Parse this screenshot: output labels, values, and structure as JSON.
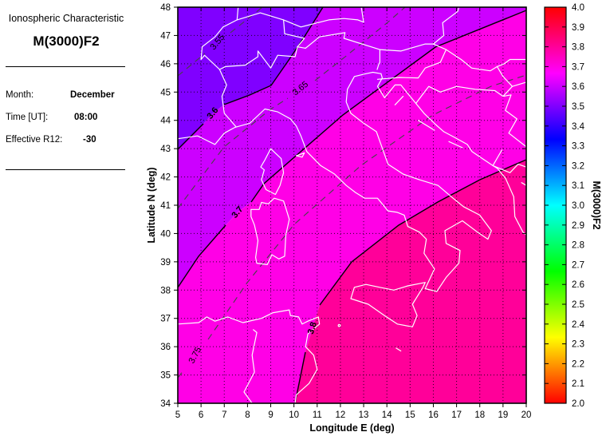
{
  "panel": {
    "subtitle": "Ionospheric Characteristic",
    "title": "M(3000)F2",
    "rows": [
      {
        "label": "Month:",
        "value": "December"
      },
      {
        "label": "Time [UT]:",
        "value": "08:00"
      },
      {
        "label": "Effective R12:",
        "value": "-30"
      }
    ]
  },
  "chart_data": {
    "type": "heatmap",
    "subtype": "filled contour map of ionospheric M(3000)F2 over Italy / central Mediterranean",
    "title": "M(3000)F2",
    "xlabel": "Longitude E (deg)",
    "ylabel": "Latitude N (deg)",
    "xlim": [
      5,
      20
    ],
    "ylim": [
      34,
      48
    ],
    "xticks": [
      5,
      6,
      7,
      8,
      9,
      10,
      11,
      12,
      13,
      14,
      15,
      16,
      17,
      18,
      19,
      20
    ],
    "yticks": [
      34,
      35,
      36,
      37,
      38,
      39,
      40,
      41,
      42,
      43,
      44,
      45,
      46,
      47,
      48
    ],
    "grid": "dotted",
    "coastline_color": "#FFFFFF",
    "contours": [
      {
        "level": "3.55",
        "style": "dashed"
      },
      {
        "level": "3.6",
        "style": "solid"
      },
      {
        "level": "3.65",
        "style": "dashed"
      },
      {
        "level": "3.7",
        "style": "solid"
      },
      {
        "level": "3.75",
        "style": "dashed"
      },
      {
        "level": "3.8",
        "style": "solid"
      }
    ],
    "fill_bands": [
      {
        "range": "3.5-3.6",
        "color": "#8000FF"
      },
      {
        "range": "3.6-3.7",
        "color": "#CC00FF"
      },
      {
        "range": "3.7-3.8",
        "color": "#FF00E6"
      },
      {
        "range": "3.8-3.9",
        "color": "#FF0099"
      }
    ],
    "colorbar": {
      "label": "M(3000)F2",
      "min": 2.0,
      "max": 4.0,
      "ticks": [
        "4.0",
        "3.9",
        "3.8",
        "3.7",
        "3.6",
        "3.5",
        "3.4",
        "3.3",
        "3.2",
        "3.1",
        "3.0",
        "2.9",
        "2.8",
        "2.7",
        "2.6",
        "2.5",
        "2.4",
        "2.3",
        "2.2",
        "2.1",
        "2.0"
      ],
      "colormap": "hsv",
      "gradient_stops": [
        {
          "pos": 0.0,
          "color": "#FF0000"
        },
        {
          "pos": 0.1667,
          "color": "#FF00FF"
        },
        {
          "pos": 0.3333,
          "color": "#0000FF"
        },
        {
          "pos": 0.5,
          "color": "#00FFFF"
        },
        {
          "pos": 0.6667,
          "color": "#00FF00"
        },
        {
          "pos": 0.8333,
          "color": "#FFFF00"
        },
        {
          "pos": 1.0,
          "color": "#FF0000"
        }
      ]
    }
  }
}
